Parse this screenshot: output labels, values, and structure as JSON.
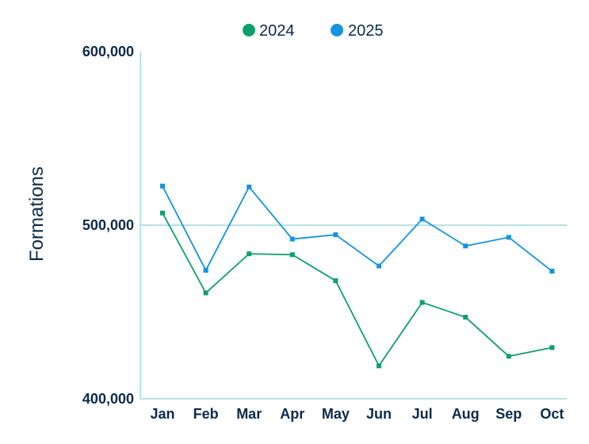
{
  "chart_data": {
    "type": "line",
    "categories": [
      "Jan",
      "Feb",
      "Mar",
      "Apr",
      "May",
      "Jun",
      "Jul",
      "Aug",
      "Sep",
      "Oct"
    ],
    "series": [
      {
        "name": "2024",
        "color": "#0e9f6e",
        "values": [
          507000,
          461000,
          483500,
          483000,
          468000,
          419000,
          455500,
          447000,
          424500,
          429500
        ]
      },
      {
        "name": "2025",
        "color": "#1493e0",
        "values": [
          522500,
          474000,
          522000,
          492000,
          494500,
          476500,
          503500,
          488000,
          493000,
          473500
        ]
      }
    ],
    "ylabel": "Formations",
    "ylim": [
      400000,
      600000
    ],
    "yticks": [
      400000,
      500000,
      600000
    ],
    "ytick_labels": [
      "400,000",
      "500,000",
      "600,000"
    ],
    "grid": "horizontal at 500,000",
    "legend_position": "top-center",
    "axis_color": "#b7e3e6"
  }
}
